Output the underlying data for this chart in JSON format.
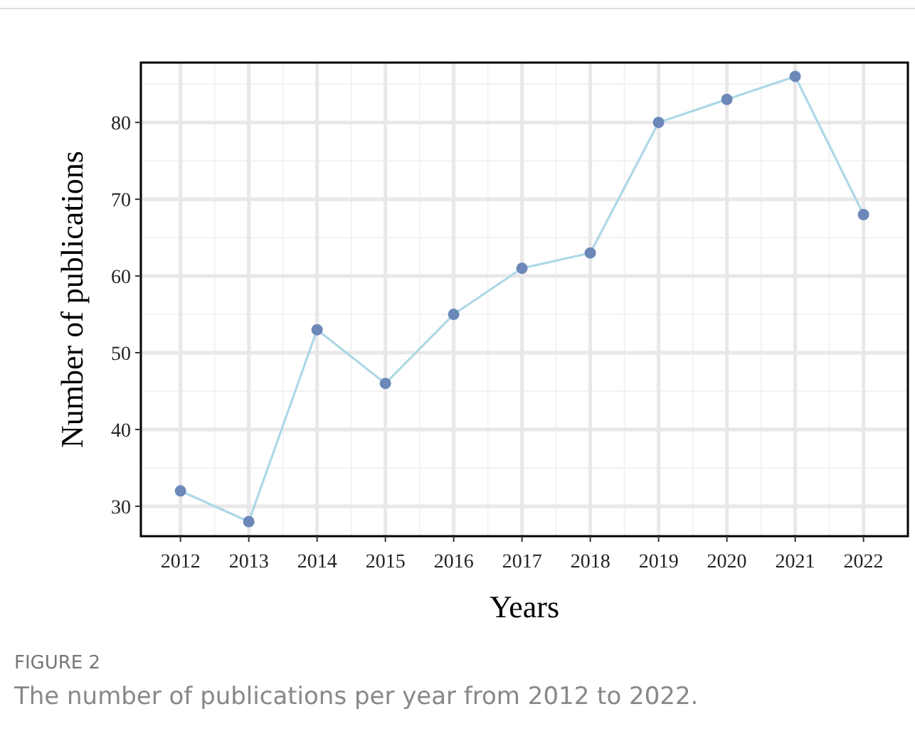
{
  "chart_data": {
    "type": "line",
    "xlabel": "Years",
    "ylabel": "Number of publications",
    "x": [
      2012,
      2013,
      2014,
      2015,
      2016,
      2017,
      2018,
      2019,
      2020,
      2021,
      2022
    ],
    "series": [
      {
        "color": "#add8e6",
        "colors": [
          "#6b88b8",
          "#6b88b8",
          "#6b88b8",
          "#6b88b8",
          "#6b88b8",
          "#6b88b8",
          "#6b88b8",
          "#6b88b8",
          "#6b88b8",
          "#6b88b8",
          "#6b88b8"
        ],
        "values": [
          32,
          28,
          53,
          46,
          55,
          61,
          63,
          80,
          83,
          86,
          68
        ]
      }
    ],
    "xlim": [
      2011.42,
      2022.65
    ],
    "xticks": [
      2012,
      2013,
      2014,
      2015,
      2016,
      2017,
      2018,
      2019,
      2020,
      2021,
      2022
    ],
    "ylim": [
      26.1,
      87.8
    ],
    "yticks": [
      30,
      40,
      50,
      60,
      70,
      80
    ],
    "grid": true,
    "marker": "circle",
    "line_style": "solid",
    "annotations": [
      "FIGURE 2",
      "The number of publications per year from 2012 to 2022."
    ]
  }
}
